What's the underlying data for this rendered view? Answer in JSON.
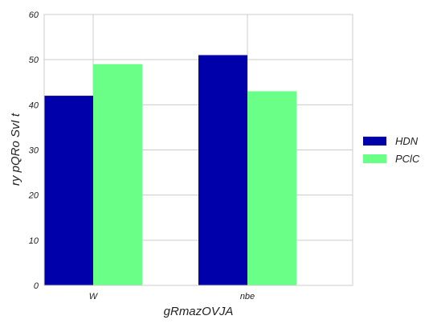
{
  "chart_data": {
    "type": "bar",
    "title": "",
    "xlabel": "gRmazOVJA",
    "ylabel": "ry  pQRo SvI t",
    "categories": [
      "W",
      "nbe"
    ],
    "series": [
      {
        "name": "HDN",
        "values": [
          42,
          51
        ],
        "color": "#0000aa"
      },
      {
        "name": "PClC",
        "values": [
          49,
          43
        ],
        "color": "#6aff87"
      }
    ],
    "ylim": [
      0,
      60
    ],
    "yticks": [
      0,
      10,
      20,
      30,
      40,
      50,
      60
    ],
    "grid": true,
    "legend_position": "right"
  }
}
